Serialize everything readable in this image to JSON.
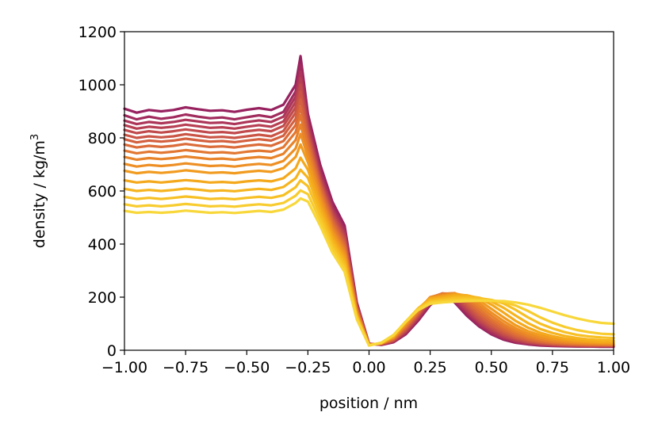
{
  "chart_data": {
    "type": "line",
    "xlabel": "position / nm",
    "ylabel_base": "density / kg/m",
    "ylabel_sup": "3",
    "xlim": [
      -1.0,
      1.0
    ],
    "ylim": [
      0,
      1200
    ],
    "xticks": [
      -1.0,
      -0.75,
      -0.5,
      -0.25,
      0.0,
      0.25,
      0.5,
      0.75,
      1.0
    ],
    "xtick_labels": [
      "−1.00",
      "−0.75",
      "−0.50",
      "−0.25",
      "0.00",
      "0.25",
      "0.50",
      "0.75",
      "1.00"
    ],
    "yticks": [
      0,
      200,
      400,
      600,
      800,
      1000,
      1200
    ],
    "ytick_labels": [
      "0",
      "200",
      "400",
      "600",
      "800",
      "1000",
      "1200"
    ],
    "grid": false,
    "x": [
      -1.0,
      -0.95,
      -0.9,
      -0.85,
      -0.8,
      -0.75,
      -0.7,
      -0.65,
      -0.6,
      -0.55,
      -0.5,
      -0.45,
      -0.4,
      -0.35,
      -0.3,
      -0.28,
      -0.25,
      -0.2,
      -0.15,
      -0.1,
      -0.05,
      0.0,
      0.05,
      0.1,
      0.15,
      0.2,
      0.25,
      0.3,
      0.35,
      0.4,
      0.45,
      0.5,
      0.55,
      0.6,
      0.65,
      0.7,
      0.75,
      0.8,
      0.85,
      0.9,
      0.95,
      1.0
    ],
    "series": [
      {
        "color": "#97225f",
        "values": [
          910,
          895,
          905,
          900,
          905,
          915,
          908,
          902,
          904,
          898,
          906,
          912,
          905,
          925,
          1000,
          1108,
          890,
          700,
          560,
          470,
          180,
          25,
          20,
          30,
          60,
          110,
          170,
          205,
          180,
          130,
          90,
          60,
          40,
          28,
          22,
          18,
          16,
          15,
          14,
          14,
          13,
          13
        ]
      },
      {
        "color": "#a12b5d",
        "values": [
          885,
          870,
          880,
          872,
          878,
          888,
          880,
          874,
          877,
          870,
          878,
          885,
          878,
          898,
          975,
          1075,
          870,
          680,
          545,
          455,
          175,
          24,
          21,
          32,
          64,
          116,
          175,
          208,
          185,
          138,
          96,
          64,
          44,
          31,
          24,
          20,
          17,
          16,
          15,
          14,
          14,
          14
        ]
      },
      {
        "color": "#ac3559",
        "values": [
          865,
          852,
          860,
          855,
          860,
          868,
          862,
          856,
          858,
          852,
          860,
          866,
          860,
          880,
          955,
          1050,
          855,
          668,
          535,
          445,
          172,
          24,
          22,
          33,
          67,
          120,
          180,
          210,
          192,
          145,
          102,
          70,
          48,
          34,
          26,
          21,
          18,
          17,
          16,
          15,
          15,
          15
        ]
      },
      {
        "color": "#b73f53",
        "values": [
          848,
          835,
          842,
          838,
          842,
          850,
          844,
          838,
          840,
          835,
          842,
          848,
          842,
          862,
          935,
          1025,
          842,
          655,
          525,
          435,
          168,
          24,
          22,
          35,
          70,
          124,
          185,
          212,
          198,
          152,
          108,
          76,
          52,
          37,
          28,
          23,
          20,
          18,
          17,
          16,
          16,
          16
        ]
      },
      {
        "color": "#c14a4c",
        "values": [
          830,
          818,
          825,
          820,
          825,
          832,
          826,
          820,
          822,
          818,
          825,
          830,
          825,
          845,
          915,
          1000,
          828,
          645,
          515,
          425,
          164,
          23,
          23,
          36,
          74,
          128,
          190,
          213,
          203,
          160,
          115,
          83,
          58,
          42,
          31,
          25,
          21,
          19,
          18,
          17,
          17,
          17
        ]
      },
      {
        "color": "#ca5546",
        "values": [
          812,
          800,
          806,
          802,
          806,
          814,
          808,
          802,
          804,
          800,
          806,
          812,
          806,
          826,
          895,
          975,
          815,
          635,
          505,
          415,
          160,
          23,
          23,
          38,
          78,
          132,
          194,
          214,
          208,
          168,
          124,
          90,
          64,
          46,
          34,
          27,
          23,
          21,
          19,
          18,
          18,
          18
        ]
      },
      {
        "color": "#d3603f",
        "values": [
          795,
          783,
          790,
          786,
          790,
          797,
          791,
          786,
          788,
          784,
          790,
          795,
          790,
          808,
          872,
          945,
          800,
          625,
          495,
          405,
          156,
          22,
          24,
          40,
          82,
          136,
          197,
          214,
          212,
          176,
          134,
          98,
          71,
          51,
          38,
          30,
          25,
          22,
          20,
          19,
          19,
          19
        ]
      },
      {
        "color": "#db6b38",
        "values": [
          775,
          764,
          770,
          766,
          770,
          777,
          771,
          766,
          768,
          764,
          770,
          775,
          770,
          788,
          848,
          915,
          785,
          615,
          485,
          395,
          152,
          22,
          24,
          42,
          86,
          140,
          199,
          213,
          214,
          184,
          144,
          108,
          79,
          57,
          42,
          33,
          27,
          24,
          22,
          21,
          20,
          20
        ]
      },
      {
        "color": "#e27731",
        "values": [
          752,
          742,
          748,
          744,
          748,
          754,
          749,
          744,
          746,
          742,
          748,
          752,
          748,
          765,
          822,
          885,
          768,
          602,
          474,
          385,
          148,
          21,
          25,
          44,
          90,
          144,
          200,
          212,
          215,
          192,
          155,
          118,
          88,
          64,
          48,
          37,
          30,
          26,
          24,
          22,
          21,
          21
        ]
      },
      {
        "color": "#e8832a",
        "values": [
          728,
          718,
          724,
          720,
          724,
          730,
          725,
          720,
          722,
          718,
          724,
          728,
          724,
          740,
          792,
          850,
          750,
          590,
          463,
          375,
          144,
          21,
          25,
          46,
          94,
          148,
          200,
          210,
          215,
          198,
          166,
          130,
          98,
          72,
          54,
          42,
          34,
          29,
          26,
          24,
          23,
          22
        ]
      },
      {
        "color": "#ed8f24",
        "values": [
          702,
          692,
          698,
          694,
          698,
          704,
          699,
          694,
          696,
          692,
          698,
          702,
          698,
          713,
          760,
          815,
          730,
          577,
          452,
          365,
          140,
          20,
          26,
          48,
          98,
          152,
          199,
          207,
          214,
          203,
          177,
          142,
          110,
          82,
          62,
          48,
          39,
          33,
          29,
          27,
          25,
          24
        ]
      },
      {
        "color": "#f19b1f",
        "values": [
          676,
          667,
          672,
          668,
          672,
          678,
          673,
          668,
          670,
          667,
          672,
          676,
          672,
          686,
          728,
          775,
          708,
          562,
          440,
          355,
          136,
          20,
          26,
          50,
          102,
          155,
          197,
          204,
          212,
          206,
          188,
          156,
          124,
          94,
          72,
          56,
          45,
          38,
          33,
          30,
          28,
          27
        ]
      },
      {
        "color": "#f4a81c",
        "values": [
          640,
          632,
          636,
          632,
          636,
          641,
          637,
          632,
          634,
          631,
          636,
          640,
          636,
          648,
          685,
          725,
          680,
          545,
          427,
          343,
          132,
          19,
          27,
          52,
          105,
          157,
          194,
          200,
          208,
          207,
          196,
          172,
          142,
          110,
          85,
          66,
          53,
          44,
          38,
          34,
          31,
          30
        ]
      },
      {
        "color": "#f6b41e",
        "values": [
          608,
          600,
          604,
          600,
          604,
          609,
          605,
          600,
          602,
          599,
          604,
          608,
          604,
          615,
          648,
          680,
          650,
          528,
          414,
          332,
          128,
          19,
          27,
          54,
          107,
          157,
          190,
          195,
          202,
          204,
          198,
          184,
          160,
          130,
          102,
          80,
          65,
          54,
          46,
          41,
          38,
          36
        ]
      },
      {
        "color": "#f7c024",
        "values": [
          578,
          570,
          574,
          570,
          574,
          579,
          575,
          570,
          572,
          569,
          574,
          578,
          574,
          584,
          614,
          640,
          618,
          510,
          400,
          320,
          124,
          18,
          28,
          56,
          108,
          156,
          185,
          190,
          196,
          198,
          196,
          190,
          176,
          152,
          124,
          100,
          82,
          68,
          58,
          52,
          48,
          46
        ]
      },
      {
        "color": "#f8cc2e",
        "values": [
          550,
          542,
          546,
          542,
          546,
          551,
          547,
          542,
          544,
          541,
          546,
          550,
          546,
          555,
          582,
          602,
          588,
          490,
          385,
          308,
          120,
          18,
          28,
          57,
          108,
          154,
          180,
          185,
          189,
          191,
          190,
          188,
          182,
          168,
          148,
          124,
          104,
          88,
          76,
          68,
          62,
          60
        ]
      },
      {
        "color": "#f8d73a",
        "values": [
          525,
          518,
          521,
          518,
          521,
          526,
          522,
          518,
          520,
          517,
          521,
          525,
          521,
          530,
          555,
          572,
          560,
          470,
          368,
          295,
          116,
          18,
          28,
          58,
          107,
          151,
          175,
          180,
          183,
          185,
          186,
          186,
          185,
          180,
          172,
          160,
          146,
          132,
          120,
          110,
          103,
          100
        ]
      }
    ]
  }
}
